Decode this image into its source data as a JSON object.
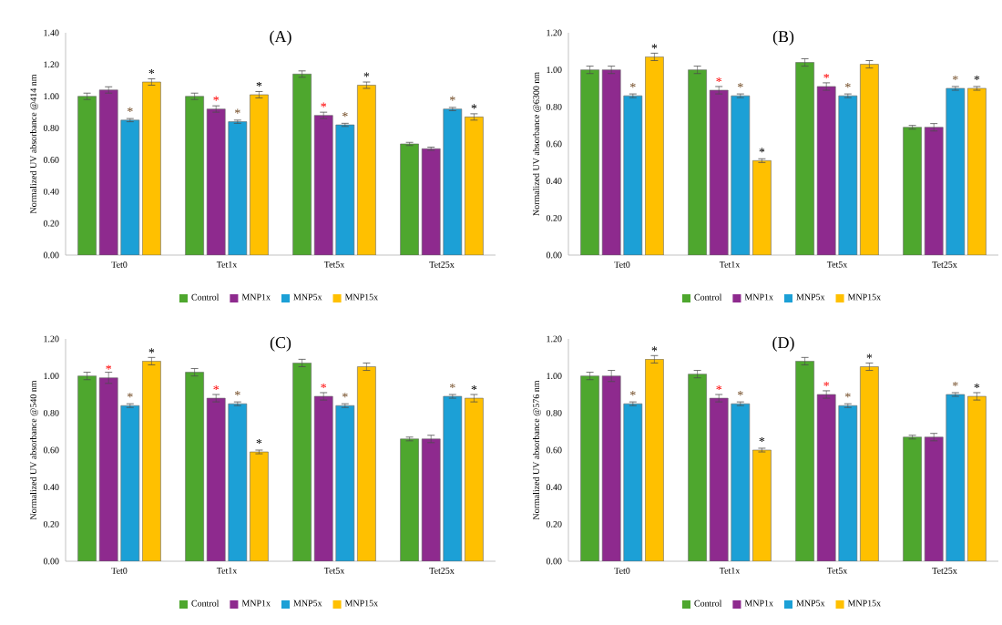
{
  "chart_data": [
    {
      "type": "bar",
      "title": "(A)",
      "ylabel": "Normalized UV absorbance @414 nm",
      "categories": [
        "Tet0",
        "Tet1x",
        "Tet5x",
        "Tet25x"
      ],
      "legend": "bottom",
      "ylim": [
        0,
        1.4
      ],
      "yticks": [
        {
          "value": 0,
          "label": "0.00"
        },
        {
          "value": 0.2,
          "label": "0.20"
        },
        {
          "value": 0.4,
          "label": "0.40"
        },
        {
          "value": 0.6,
          "label": "0.60"
        },
        {
          "value": 0.8,
          "label": "0.80"
        },
        {
          "value": 1,
          "label": "1.00"
        },
        {
          "value": 1.2,
          "label": "1.20"
        },
        {
          "value": 1.4,
          "label": "1.40"
        }
      ],
      "series": [
        {
          "name": "Control",
          "color": "#4ea72e",
          "values": [
            1.0,
            1.0,
            1.14,
            0.7
          ],
          "errors": [
            0.02,
            0.02,
            0.02,
            0.01
          ]
        },
        {
          "name": "MNP1x",
          "color": "#8e2a8e",
          "values": [
            1.04,
            0.92,
            0.88,
            0.67
          ],
          "errors": [
            0.02,
            0.02,
            0.02,
            0.01
          ],
          "value_labels": [
            null,
            "*",
            "*",
            null
          ]
        },
        {
          "name": "MNP5x",
          "color": "#1ca0d6",
          "values": [
            0.85,
            0.84,
            0.82,
            0.92
          ],
          "errors": [
            0.01,
            0.01,
            0.01,
            0.01
          ],
          "value_labels": [
            "*",
            "*",
            "*",
            "*"
          ]
        },
        {
          "name": "MNP15x",
          "color": "#ffc000",
          "values": [
            1.09,
            1.01,
            1.07,
            0.87
          ],
          "errors": [
            0.02,
            0.02,
            0.02,
            0.02
          ],
          "value_labels": [
            "*",
            "*",
            "*",
            "*"
          ]
        }
      ]
    },
    {
      "type": "bar",
      "title": "(B)",
      "ylabel": "Normalized UV absorbance @6300 nm",
      "categories": [
        "Tet0",
        "Tet1x",
        "Tet5x",
        "Tet25x"
      ],
      "legend": "bottom",
      "ylim": [
        0,
        1.2
      ],
      "yticks": [
        {
          "value": 0,
          "label": "0.00"
        },
        {
          "value": 0.2,
          "label": "0.20"
        },
        {
          "value": 0.4,
          "label": "0.40"
        },
        {
          "value": 0.6,
          "label": "0.60"
        },
        {
          "value": 0.8,
          "label": "0.80"
        },
        {
          "value": 1,
          "label": "1.00"
        },
        {
          "value": 1.2,
          "label": "1.20"
        }
      ],
      "series": [
        {
          "name": "Control",
          "color": "#4ea72e",
          "values": [
            1.0,
            1.0,
            1.04,
            0.69
          ],
          "errors": [
            0.02,
            0.02,
            0.02,
            0.01
          ]
        },
        {
          "name": "MNP1x",
          "color": "#8e2a8e",
          "values": [
            1.0,
            0.89,
            0.91,
            0.69
          ],
          "errors": [
            0.02,
            0.02,
            0.02,
            0.02
          ],
          "value_labels": [
            null,
            "*",
            "*",
            null
          ]
        },
        {
          "name": "MNP5x",
          "color": "#1ca0d6",
          "values": [
            0.86,
            0.86,
            0.86,
            0.9
          ],
          "errors": [
            0.01,
            0.01,
            0.01,
            0.01
          ],
          "value_labels": [
            "*",
            "*",
            "*",
            "*"
          ]
        },
        {
          "name": "MNP15x",
          "color": "#ffc000",
          "values": [
            1.07,
            0.51,
            1.03,
            0.9
          ],
          "errors": [
            0.02,
            0.01,
            0.02,
            0.01
          ],
          "value_labels": [
            "*",
            "*",
            null,
            "*"
          ]
        }
      ]
    },
    {
      "type": "bar",
      "title": "(C)",
      "ylabel": "Normalized UV absorbance @540 nm",
      "categories": [
        "Tet0",
        "Tet1x",
        "Tet5x",
        "Tet25x"
      ],
      "legend": "bottom",
      "ylim": [
        0,
        1.2
      ],
      "yticks": [
        {
          "value": 0,
          "label": "0.00"
        },
        {
          "value": 0.2,
          "label": "0.20"
        },
        {
          "value": 0.4,
          "label": "0.40"
        },
        {
          "value": 0.6,
          "label": "0.60"
        },
        {
          "value": 0.8,
          "label": "0.80"
        },
        {
          "value": 1,
          "label": "1.00"
        },
        {
          "value": 1.2,
          "label": "1.20"
        }
      ],
      "series": [
        {
          "name": "Control",
          "color": "#4ea72e",
          "values": [
            1.0,
            1.02,
            1.07,
            0.66
          ],
          "errors": [
            0.02,
            0.02,
            0.02,
            0.01
          ]
        },
        {
          "name": "MNP1x",
          "color": "#8e2a8e",
          "values": [
            0.99,
            0.88,
            0.89,
            0.66
          ],
          "errors": [
            0.03,
            0.02,
            0.02,
            0.02
          ],
          "value_labels": [
            "*",
            "*",
            "*",
            null
          ]
        },
        {
          "name": "MNP5x",
          "color": "#1ca0d6",
          "values": [
            0.84,
            0.85,
            0.84,
            0.89
          ],
          "errors": [
            0.01,
            0.01,
            0.01,
            0.01
          ],
          "value_labels": [
            "*",
            "*",
            "*",
            "*"
          ]
        },
        {
          "name": "MNP15x",
          "color": "#ffc000",
          "values": [
            1.08,
            0.59,
            1.05,
            0.88
          ],
          "errors": [
            0.02,
            0.01,
            0.02,
            0.02
          ],
          "value_labels": [
            "*",
            "*",
            null,
            "*"
          ]
        }
      ]
    },
    {
      "type": "bar",
      "title": "(D)",
      "ylabel": "Normalized UV absorbance @576 nm",
      "categories": [
        "Tet0",
        "Tet1x",
        "Tet5x",
        "Tet25x"
      ],
      "legend": "bottom",
      "ylim": [
        0,
        1.2
      ],
      "yticks": [
        {
          "value": 0,
          "label": "0.00"
        },
        {
          "value": 0.2,
          "label": "0.20"
        },
        {
          "value": 0.4,
          "label": "0.40"
        },
        {
          "value": 0.6,
          "label": "0.60"
        },
        {
          "value": 0.8,
          "label": "0.80"
        },
        {
          "value": 1,
          "label": "1.00"
        },
        {
          "value": 1.2,
          "label": "1.20"
        }
      ],
      "series": [
        {
          "name": "Control",
          "color": "#4ea72e",
          "values": [
            1.0,
            1.01,
            1.08,
            0.67
          ],
          "errors": [
            0.02,
            0.02,
            0.02,
            0.01
          ]
        },
        {
          "name": "MNP1x",
          "color": "#8e2a8e",
          "values": [
            1.0,
            0.88,
            0.9,
            0.67
          ],
          "errors": [
            0.03,
            0.02,
            0.02,
            0.02
          ],
          "value_labels": [
            null,
            "*",
            "*",
            null
          ]
        },
        {
          "name": "MNP5x",
          "color": "#1ca0d6",
          "values": [
            0.85,
            0.85,
            0.84,
            0.9
          ],
          "errors": [
            0.01,
            0.01,
            0.01,
            0.01
          ],
          "value_labels": [
            "*",
            "*",
            "*",
            "*"
          ]
        },
        {
          "name": "MNP15x",
          "color": "#ffc000",
          "values": [
            1.09,
            0.6,
            1.05,
            0.89
          ],
          "errors": [
            0.02,
            0.01,
            0.02,
            0.02
          ],
          "value_labels": [
            "*",
            "*",
            "*",
            "*"
          ]
        }
      ]
    }
  ]
}
